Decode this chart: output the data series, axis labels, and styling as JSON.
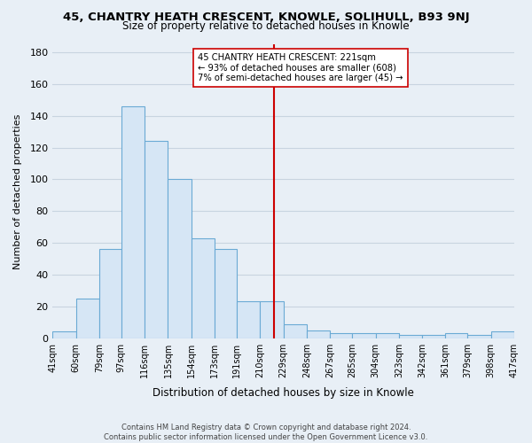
{
  "title": "45, CHANTRY HEATH CRESCENT, KNOWLE, SOLIHULL, B93 9NJ",
  "subtitle": "Size of property relative to detached houses in Knowle",
  "xlabel": "Distribution of detached houses by size in Knowle",
  "ylabel": "Number of detached properties",
  "bar_color": "#d6e6f5",
  "bar_edge_color": "#6aaad4",
  "bin_labels": [
    "41sqm",
    "60sqm",
    "79sqm",
    "97sqm",
    "116sqm",
    "135sqm",
    "154sqm",
    "173sqm",
    "191sqm",
    "210sqm",
    "229sqm",
    "248sqm",
    "267sqm",
    "285sqm",
    "304sqm",
    "323sqm",
    "342sqm",
    "361sqm",
    "379sqm",
    "398sqm",
    "417sqm"
  ],
  "bin_edges": [
    41,
    60,
    79,
    97,
    116,
    135,
    154,
    173,
    191,
    210,
    229,
    248,
    267,
    285,
    304,
    323,
    342,
    361,
    379,
    398,
    417
  ],
  "bar_heights": [
    4,
    25,
    56,
    146,
    124,
    100,
    63,
    56,
    23,
    23,
    9,
    5,
    3,
    3,
    3,
    2,
    2,
    3,
    2,
    4
  ],
  "ylim": [
    0,
    185
  ],
  "yticks": [
    0,
    20,
    40,
    60,
    80,
    100,
    120,
    140,
    160,
    180
  ],
  "property_line_x": 221,
  "property_line_color": "#cc0000",
  "annotation_line1": "45 CHANTRY HEATH CRESCENT: 221sqm",
  "annotation_line2": "← 93% of detached houses are smaller (608)",
  "annotation_line3": "7% of semi-detached houses are larger (45) →",
  "footnote": "Contains HM Land Registry data © Crown copyright and database right 2024.\nContains public sector information licensed under the Open Government Licence v3.0.",
  "background_color": "#e8eff6",
  "grid_color": "#c8d4e0"
}
